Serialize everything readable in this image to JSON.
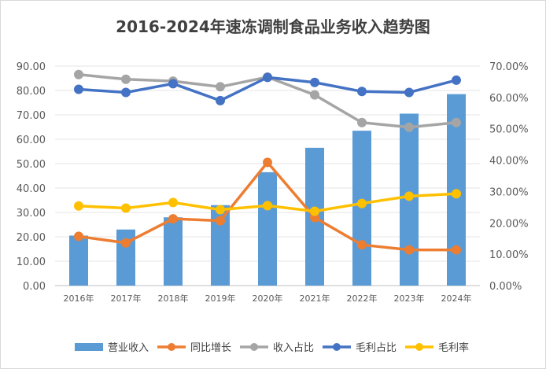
{
  "chart_data": {
    "type": "bar",
    "title": "2016-2024年速冻调制食品业务收入趋势图",
    "categories": [
      "2016年",
      "2017年",
      "2018年",
      "2019年",
      "2020年",
      "2021年",
      "2022年",
      "2023年",
      "2024年"
    ],
    "y_left": {
      "ylim": [
        0,
        90
      ],
      "ticks": [
        "0.00",
        "10.00",
        "20.00",
        "30.00",
        "40.00",
        "50.00",
        "60.00",
        "70.00",
        "80.00",
        "90.00"
      ]
    },
    "y_right": {
      "ylim": [
        0,
        0.7
      ],
      "ticks": [
        "0.00%",
        "10.00%",
        "20.00%",
        "30.00%",
        "40.00%",
        "50.00%",
        "60.00%",
        "70.00%"
      ]
    },
    "series": [
      {
        "name": "营业收入",
        "type": "bar",
        "axis": "left",
        "color": "#5b9bd5",
        "values": [
          20.5,
          23,
          28,
          33,
          46.5,
          56.5,
          63.5,
          70.5,
          78.5
        ]
      },
      {
        "name": "同比增长",
        "type": "line",
        "axis": "right",
        "color": "#ed7d31",
        "values": [
          0.157,
          0.136,
          0.213,
          0.207,
          0.393,
          0.217,
          0.13,
          0.114,
          0.114
        ]
      },
      {
        "name": "收入占比",
        "type": "line",
        "axis": "right",
        "color": "#a5a5a5",
        "values": [
          0.673,
          0.658,
          0.652,
          0.634,
          0.665,
          0.608,
          0.52,
          0.505,
          0.52
        ]
      },
      {
        "name": "毛利占比",
        "type": "line",
        "axis": "right",
        "color": "#4472c4",
        "values": [
          0.626,
          0.616,
          0.644,
          0.59,
          0.664,
          0.648,
          0.619,
          0.616,
          0.655
        ]
      },
      {
        "name": "毛利率",
        "type": "line",
        "axis": "right",
        "color": "#ffc000",
        "values": [
          0.254,
          0.247,
          0.265,
          0.242,
          0.255,
          0.237,
          0.262,
          0.285,
          0.293
        ]
      }
    ],
    "grid": true,
    "legend": "bottom"
  }
}
